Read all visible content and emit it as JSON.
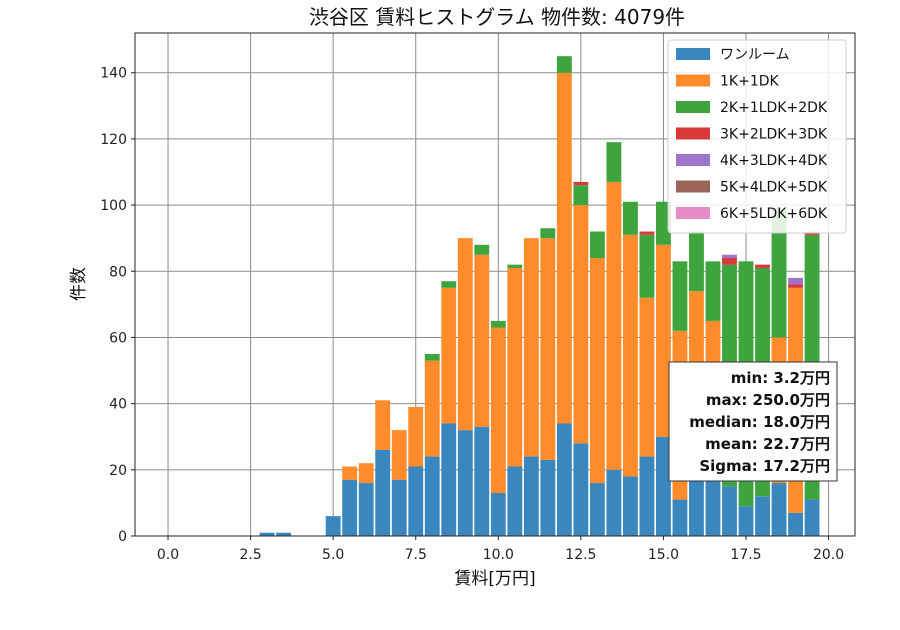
{
  "chart_data": {
    "type": "bar",
    "stacked": true,
    "title": "渋谷区 賃料ヒストグラム 物件数: 4079件",
    "xlabel": "賃料[万円]",
    "ylabel": "件数",
    "xlim": [
      -1.0,
      20.8
    ],
    "ylim": [
      0,
      152
    ],
    "xticks": [
      0.0,
      2.5,
      5.0,
      7.5,
      10.0,
      12.5,
      15.0,
      17.5,
      20.0
    ],
    "xtick_labels": [
      "0.0",
      "2.5",
      "5.0",
      "7.5",
      "10.0",
      "12.5",
      "15.0",
      "17.5",
      "20.0"
    ],
    "yticks": [
      0,
      20,
      40,
      60,
      80,
      100,
      120,
      140
    ],
    "ytick_labels": [
      "0",
      "20",
      "40",
      "60",
      "80",
      "100",
      "120",
      "140"
    ],
    "grid": true,
    "legend_position": "top-right",
    "bin_width": 0.5,
    "x": [
      0.0,
      0.5,
      1.0,
      1.5,
      2.0,
      2.5,
      3.0,
      3.5,
      4.0,
      4.5,
      5.0,
      5.5,
      6.0,
      6.5,
      7.0,
      7.5,
      8.0,
      8.5,
      9.0,
      9.5,
      10.0,
      10.5,
      11.0,
      11.5,
      12.0,
      12.5,
      13.0,
      13.5,
      14.0,
      14.5,
      15.0,
      15.5,
      16.0,
      16.5,
      17.0,
      17.5,
      18.0,
      18.5,
      19.0,
      19.5
    ],
    "series": [
      {
        "name": "ワンルーム",
        "color": "#3a87c0",
        "values": [
          0,
          0,
          0,
          0,
          0,
          0,
          1,
          1,
          0,
          0,
          6,
          17,
          16,
          26,
          17,
          21,
          24,
          34,
          32,
          33,
          13,
          21,
          24,
          23,
          34,
          28,
          16,
          20,
          18,
          24,
          30,
          11,
          19,
          21,
          15,
          9,
          12,
          16,
          7,
          11
        ]
      },
      {
        "name": "1K+1DK",
        "color": "#ff8b2a",
        "values": [
          0,
          0,
          0,
          0,
          0,
          0,
          0,
          0,
          0,
          0,
          0,
          4,
          6,
          15,
          15,
          18,
          29,
          41,
          58,
          52,
          50,
          60,
          66,
          67,
          106,
          72,
          68,
          87,
          73,
          48,
          58,
          51,
          55,
          44,
          0,
          0,
          0,
          44,
          68,
          0
        ]
      },
      {
        "name": "2K+1LDK+2DK",
        "color": "#3ea43e",
        "values": [
          0,
          0,
          0,
          0,
          0,
          0,
          0,
          0,
          0,
          0,
          0,
          0,
          0,
          0,
          0,
          0,
          2,
          2,
          0,
          3,
          2,
          1,
          0,
          3,
          5,
          6,
          8,
          12,
          10,
          19,
          13,
          21,
          18,
          18,
          67,
          74,
          69,
          39,
          0,
          80
        ]
      },
      {
        "name": "3K+2LDK+3DK",
        "color": "#d83a3a",
        "values": [
          0,
          0,
          0,
          0,
          0,
          0,
          0,
          0,
          0,
          0,
          0,
          0,
          0,
          0,
          0,
          0,
          0,
          0,
          0,
          0,
          0,
          0,
          0,
          0,
          0,
          1,
          0,
          0,
          0,
          1,
          0,
          0,
          0,
          0,
          2,
          0,
          1,
          0,
          1,
          1
        ]
      },
      {
        "name": "4K+3LDK+4DK",
        "color": "#9f74c9",
        "values": [
          0,
          0,
          0,
          0,
          0,
          0,
          0,
          0,
          0,
          0,
          0,
          0,
          0,
          0,
          0,
          0,
          0,
          0,
          0,
          0,
          0,
          0,
          0,
          0,
          0,
          0,
          0,
          0,
          0,
          0,
          0,
          0,
          0,
          0,
          1,
          0,
          0,
          0,
          2,
          0
        ]
      },
      {
        "name": "5K+4LDK+5DK",
        "color": "#9a6457",
        "values": [
          0,
          0,
          0,
          0,
          0,
          0,
          0,
          0,
          0,
          0,
          0,
          0,
          0,
          0,
          0,
          0,
          0,
          0,
          0,
          0,
          0,
          0,
          0,
          0,
          0,
          0,
          0,
          0,
          0,
          0,
          0,
          0,
          0,
          0,
          0,
          0,
          0,
          0,
          0,
          0
        ]
      },
      {
        "name": "6K+5LDK+6DK",
        "color": "#e88bc9",
        "values": [
          0,
          0,
          0,
          0,
          0,
          0,
          0,
          0,
          0,
          0,
          0,
          0,
          0,
          0,
          0,
          0,
          0,
          0,
          0,
          0,
          0,
          0,
          0,
          0,
          0,
          0,
          0,
          0,
          0,
          0,
          0,
          0,
          0,
          0,
          0,
          0,
          0,
          0,
          0,
          0
        ]
      }
    ],
    "stats_lines": [
      "min: 3.2万円",
      "max: 250.0万円",
      "median: 18.0万円",
      "mean: 22.7万円",
      "Sigma: 17.2万円"
    ]
  }
}
